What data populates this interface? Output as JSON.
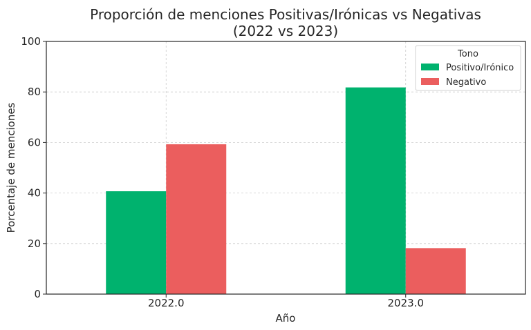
{
  "chart_data": {
    "type": "bar",
    "title": "Proporción de menciones Positivas/Irónicas vs Negativas",
    "subtitle": "(2022 vs 2023)",
    "xlabel": "Año",
    "ylabel": "Porcentaje de menciones",
    "categories": [
      "2022.0",
      "2023.0"
    ],
    "ylim": [
      0,
      100
    ],
    "yticks": [
      "0",
      "20",
      "40",
      "60",
      "80",
      "100"
    ],
    "grid": true,
    "legend": {
      "title": "Tono",
      "placement": "top-right"
    },
    "series": [
      {
        "name": "Positivo/Irónico",
        "color": "#00b26e",
        "values": [
          40.7,
          81.8
        ]
      },
      {
        "name": "Negativo",
        "color": "#eb5e5e",
        "values": [
          59.3,
          18.2
        ]
      }
    ]
  }
}
